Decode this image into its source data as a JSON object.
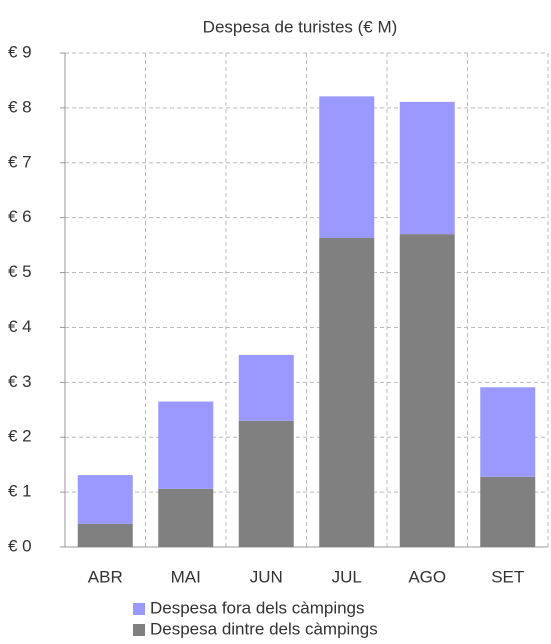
{
  "chart_data": {
    "type": "stacked_bar",
    "title": "Despesa de turistes (€ M)",
    "categories": [
      "ABR",
      "MAI",
      "JUN",
      "JUL",
      "AGO",
      "SET"
    ],
    "series": [
      {
        "name": "Despesa fora dels càmpings",
        "color": "#9999ff",
        "values": [
          0.89,
          1.59,
          1.2,
          2.58,
          2.41,
          1.63
        ]
      },
      {
        "name": "Despesa dintre dels càmpings",
        "color": "#808080",
        "values": [
          0.42,
          1.06,
          2.3,
          5.63,
          5.7,
          1.28
        ]
      }
    ],
    "ylim": [
      0,
      9
    ],
    "yticks": [
      {
        "value": 0,
        "label": "€ 0"
      },
      {
        "value": 1,
        "label": "€ 1"
      },
      {
        "value": 2,
        "label": "€ 2"
      },
      {
        "value": 3,
        "label": "€ 3"
      },
      {
        "value": 4,
        "label": "€ 4"
      },
      {
        "value": 5,
        "label": "€ 5"
      },
      {
        "value": 6,
        "label": "€ 6"
      },
      {
        "value": 7,
        "label": "€ 7"
      },
      {
        "value": 8,
        "label": "€ 8"
      },
      {
        "value": 9,
        "label": "€ 9"
      }
    ],
    "grid": true
  }
}
